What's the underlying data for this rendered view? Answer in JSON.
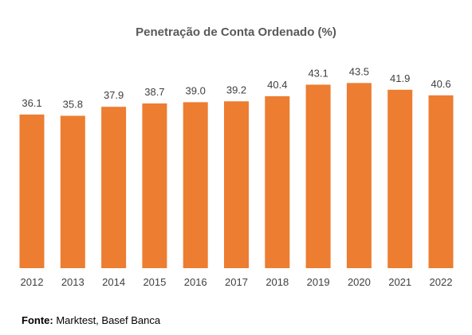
{
  "chart_data": {
    "type": "bar",
    "title": "Penetração de Conta Ordenado (%)",
    "categories": [
      "2012",
      "2013",
      "2014",
      "2015",
      "2016",
      "2017",
      "2018",
      "2019",
      "2020",
      "2021",
      "2022"
    ],
    "values": [
      36.1,
      35.8,
      37.9,
      38.7,
      39.0,
      39.2,
      40.4,
      43.1,
      43.5,
      41.9,
      40.6
    ],
    "value_labels": [
      "36.1",
      "35.8",
      "37.9",
      "38.7",
      "39.0",
      "39.2",
      "40.4",
      "43.1",
      "43.5",
      "41.9",
      "40.6"
    ],
    "xlabel": "",
    "ylabel": "",
    "ylim": [
      0,
      45
    ],
    "grid": false,
    "legend": "none",
    "bar_color": "#ED7D31"
  },
  "source": {
    "label": "Fonte:",
    "text": "Marktest, Basef Banca"
  }
}
